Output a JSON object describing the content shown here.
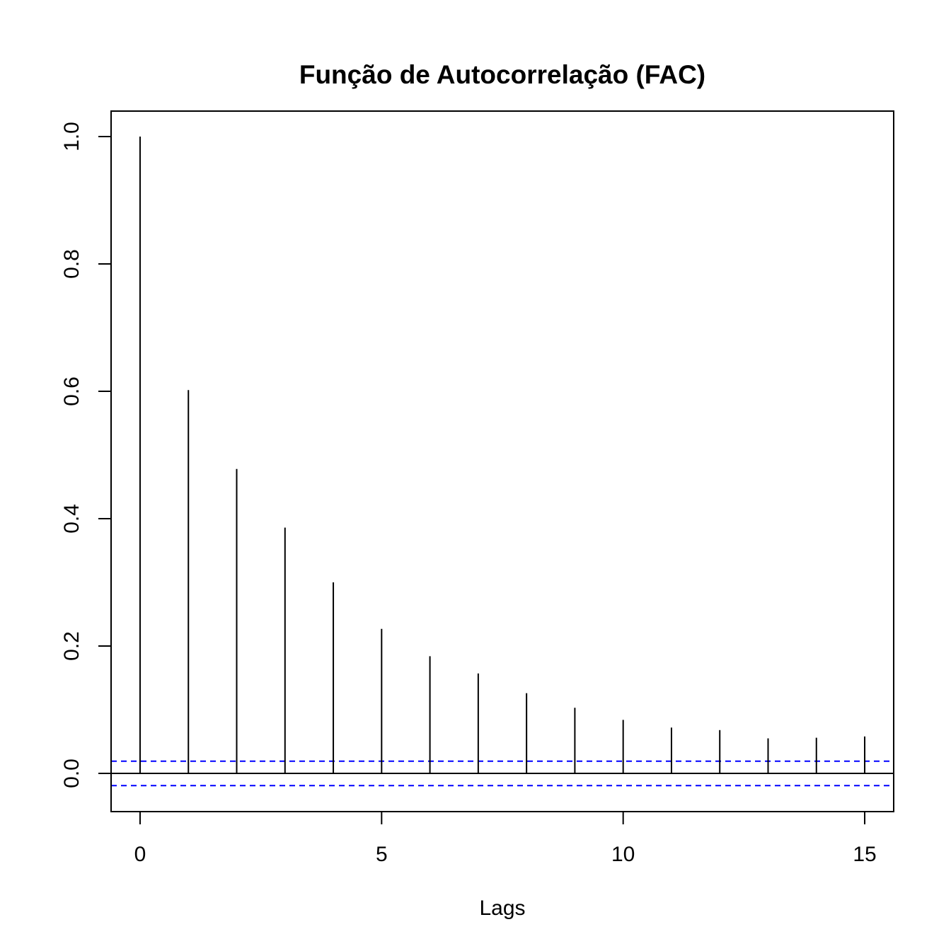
{
  "chart_data": {
    "type": "bar",
    "title": "Função de Autocorrelação (FAC)",
    "xlabel": "Lags",
    "ylabel": "",
    "x": [
      0,
      1,
      2,
      3,
      4,
      5,
      6,
      7,
      8,
      9,
      10,
      11,
      12,
      13,
      14,
      15
    ],
    "values": [
      1.0,
      0.602,
      0.478,
      0.386,
      0.3,
      0.227,
      0.184,
      0.157,
      0.126,
      0.103,
      0.084,
      0.072,
      0.068,
      0.055,
      0.056,
      0.058
    ],
    "confidence_bound": 0.0192,
    "xlim": [
      -0.6,
      15.6
    ],
    "ylim": [
      -0.06,
      1.04
    ],
    "x_ticks": [
      0,
      5,
      10,
      15
    ],
    "x_tick_labels": [
      "0",
      "5",
      "10",
      "15"
    ],
    "y_ticks": [
      0,
      0.2,
      0.4,
      0.6,
      0.8,
      1.0
    ],
    "y_tick_labels": [
      "0.0",
      "0.2",
      "0.4",
      "0.6",
      "0.8",
      "1.0"
    ],
    "grid": false,
    "colors": {
      "bars": "#000000",
      "confidence_lines": "#0000ff",
      "zero_line": "#000000",
      "frame": "#000000"
    }
  }
}
